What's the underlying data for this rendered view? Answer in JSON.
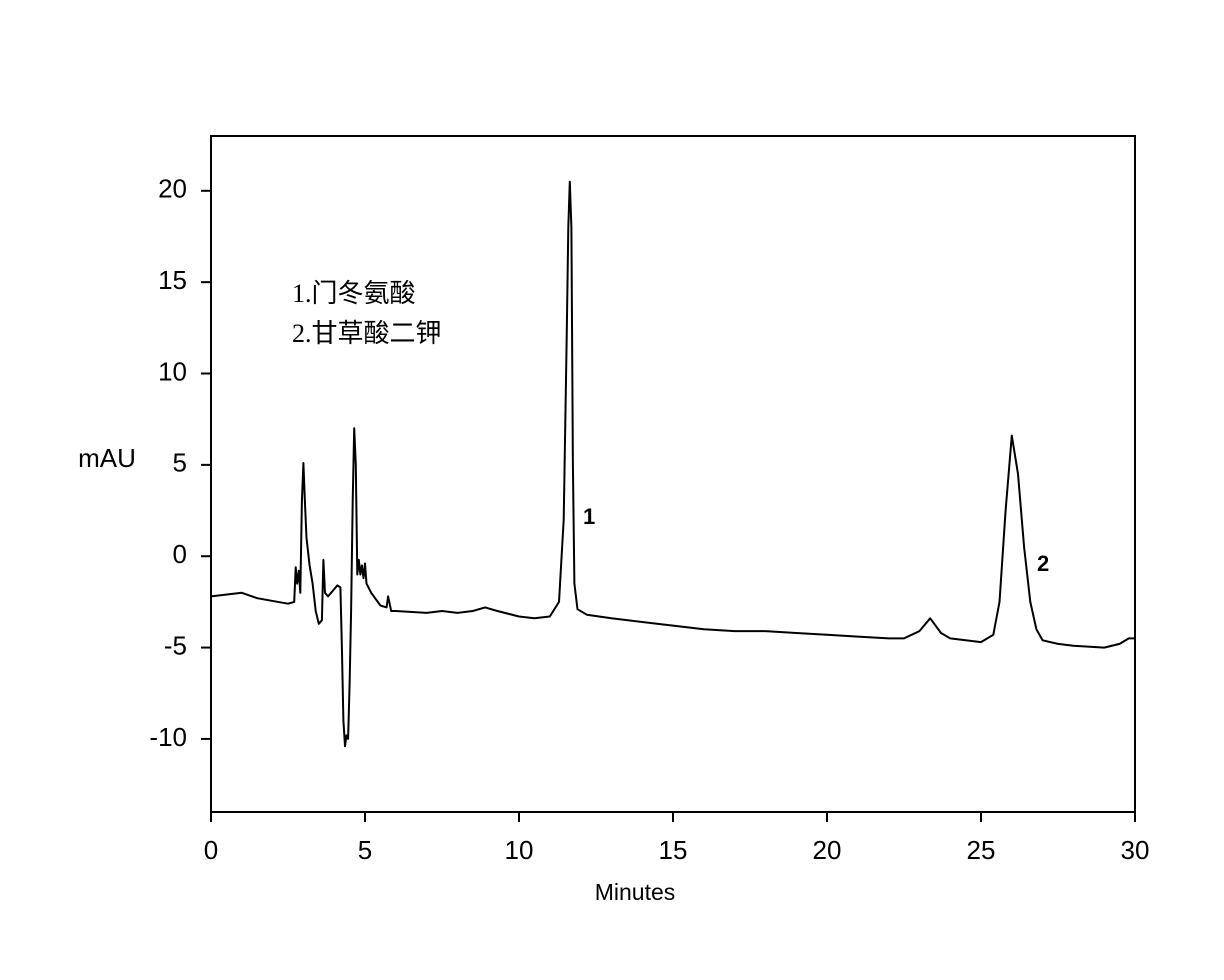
{
  "chart_data": {
    "type": "line",
    "xlabel": "Minutes",
    "ylabel": "mAU",
    "annotations": [
      "1.门冬氨酸",
      "2.甘草酸二钾"
    ],
    "peak_labels": [
      "1",
      "2"
    ],
    "xlim": [
      0,
      30
    ],
    "xticks": [
      0,
      5,
      10,
      15,
      20,
      25,
      30
    ],
    "ylim": [
      -14,
      23
    ],
    "yticks": [
      -10,
      -5,
      0,
      5,
      10,
      15,
      20
    ],
    "grid": false,
    "series": [
      {
        "color": "#000000",
        "x": [
          0,
          1,
          1.5,
          2.5,
          2.7,
          2.75,
          2.8,
          2.85,
          2.9,
          2.95,
          3.0,
          3.05,
          3.1,
          3.2,
          3.3,
          3.4,
          3.5,
          3.6,
          3.65,
          3.7,
          3.8,
          3.9,
          4.0,
          4.1,
          4.2,
          4.25,
          4.3,
          4.35,
          4.4,
          4.45,
          4.5,
          4.55,
          4.6,
          4.65,
          4.7,
          4.75,
          4.8,
          4.85,
          4.9,
          4.95,
          5.0,
          5.05,
          5.2,
          5.5,
          5.7,
          5.75,
          5.85,
          6.0,
          7,
          7.5,
          8,
          8.5,
          8.9,
          9.3,
          10,
          10.5,
          11,
          11.3,
          11.45,
          11.55,
          11.6,
          11.65,
          11.7,
          11.75,
          11.8,
          11.9,
          12.2,
          13,
          14,
          15,
          16,
          17,
          18,
          19,
          20,
          21,
          22,
          22.5,
          23.0,
          23.35,
          23.7,
          24,
          24.5,
          25,
          25.4,
          25.6,
          25.8,
          26.0,
          26.2,
          26.4,
          26.6,
          26.8,
          27,
          27.5,
          28,
          29,
          29.5,
          29.8,
          30
        ],
        "values": [
          -2.2,
          -2.0,
          -2.3,
          -2.6,
          -2.5,
          -0.6,
          -1.5,
          -0.8,
          -2.0,
          3.0,
          5.1,
          3.0,
          1.0,
          -0.5,
          -1.5,
          -3.0,
          -3.7,
          -3.5,
          -0.2,
          -2.0,
          -2.2,
          -2.0,
          -1.8,
          -1.6,
          -1.7,
          -5,
          -9,
          -10.4,
          -9.8,
          -10.0,
          -7,
          -3,
          3,
          7.0,
          5,
          -1.0,
          -0.2,
          -1.0,
          -0.5,
          -1.2,
          -0.4,
          -1.5,
          -2.0,
          -2.7,
          -2.8,
          -2.2,
          -3.0,
          -3.0,
          -3.1,
          -3.0,
          -3.1,
          -3.0,
          -2.8,
          -3.0,
          -3.3,
          -3.4,
          -3.3,
          -2.5,
          2,
          12,
          18,
          20.5,
          18,
          5,
          -1.5,
          -2.9,
          -3.2,
          -3.4,
          -3.6,
          -3.8,
          -4.0,
          -4.1,
          -4.1,
          -4.2,
          -4.3,
          -4.4,
          -4.5,
          -4.5,
          -4.1,
          -3.4,
          -4.2,
          -4.5,
          -4.6,
          -4.7,
          -4.3,
          -2.5,
          2.5,
          6.6,
          4.5,
          0.5,
          -2.5,
          -4.0,
          -4.6,
          -4.8,
          -4.9,
          -5.0,
          -4.8,
          -4.5,
          -4.5
        ]
      }
    ]
  }
}
